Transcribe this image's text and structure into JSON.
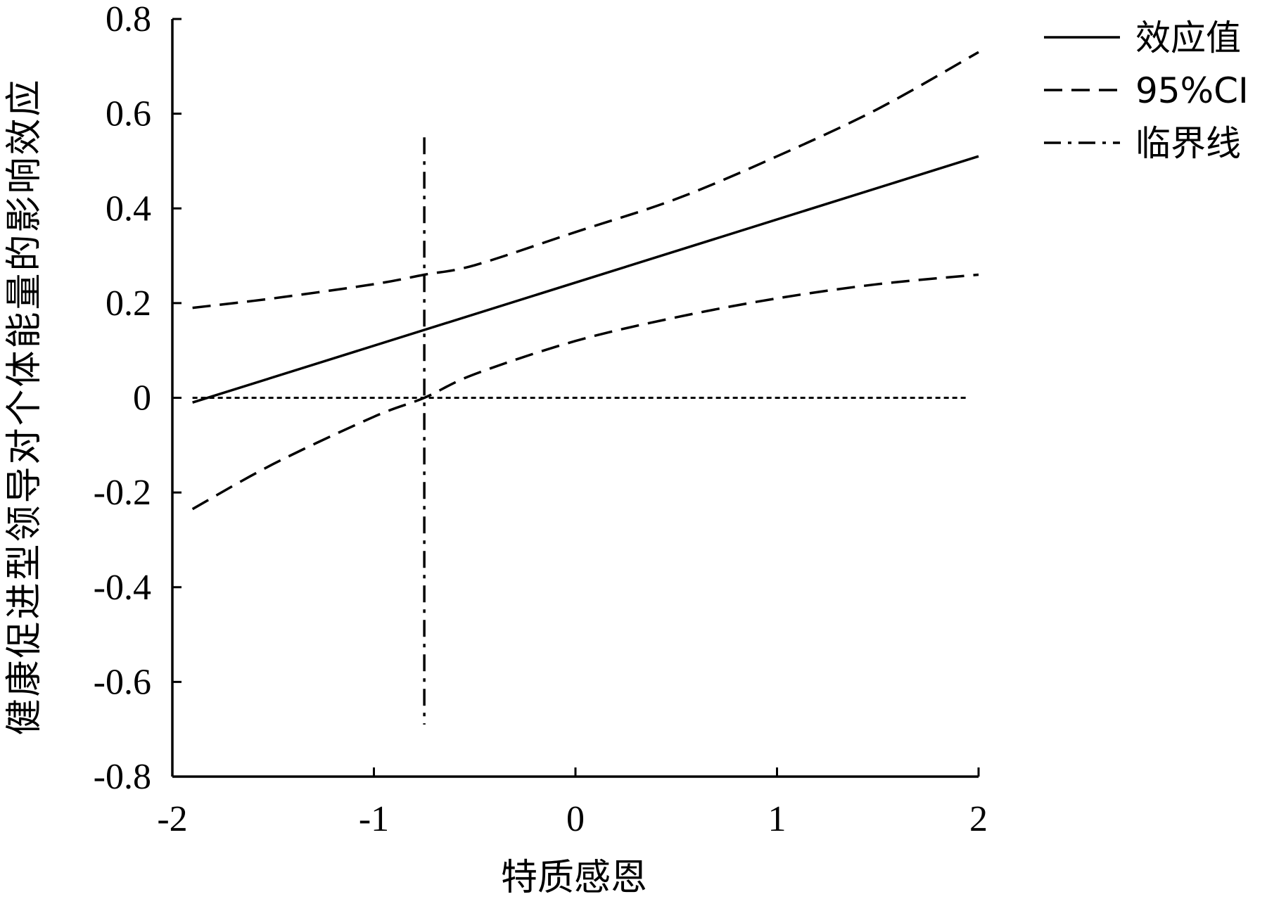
{
  "chart_data": {
    "type": "line",
    "xlabel": "特质感恩",
    "ylabel": "健康促进型领导对个体能量的影响效应",
    "xlim": [
      -2,
      2
    ],
    "ylim": [
      -0.8,
      0.8
    ],
    "x_ticks": [
      -2,
      -1,
      0,
      1,
      2
    ],
    "x_tick_labels": [
      "-2",
      "-1",
      "0",
      "1",
      "2"
    ],
    "y_ticks": [
      0.8,
      0.6,
      0.4,
      0.2,
      0,
      -0.2,
      -0.4,
      -0.6,
      -0.8
    ],
    "y_tick_labels": [
      "0.8",
      "0.6",
      "0.4",
      "0.2",
      "0",
      "-0.2",
      "-0.4",
      "-0.6",
      "-0.8"
    ],
    "grid": false,
    "legend_position": "top-right",
    "series": [
      {
        "name": "效应值",
        "style": "solid",
        "x": [
          -1.9,
          2.0
        ],
        "y": [
          -0.01,
          0.51
        ]
      },
      {
        "name": "95%CI",
        "style": "dashed",
        "x": [
          -1.9,
          -1.5,
          -1.0,
          -0.75,
          -0.5,
          0.0,
          0.5,
          1.0,
          1.5,
          2.0
        ],
        "y": [
          0.19,
          0.21,
          0.24,
          0.26,
          0.28,
          0.35,
          0.42,
          0.51,
          0.61,
          0.73
        ]
      },
      {
        "name": "",
        "legend": false,
        "style": "dashed",
        "x": [
          -1.9,
          -1.5,
          -1.0,
          -0.75,
          -0.5,
          0.0,
          0.5,
          1.0,
          1.5,
          2.0
        ],
        "y": [
          -0.235,
          -0.14,
          -0.04,
          0.0,
          0.05,
          0.12,
          0.17,
          0.21,
          0.24,
          0.26
        ]
      },
      {
        "name": "临界线",
        "style": "dashdot",
        "x": [
          -0.75,
          -0.75
        ],
        "y": [
          0.55,
          -0.69
        ]
      },
      {
        "name": "",
        "legend": false,
        "style": "dotted",
        "x": [
          -1.9,
          1.95
        ],
        "y": [
          0,
          0
        ]
      }
    ],
    "colors": {
      "line": "#000000",
      "background": "#ffffff"
    }
  }
}
